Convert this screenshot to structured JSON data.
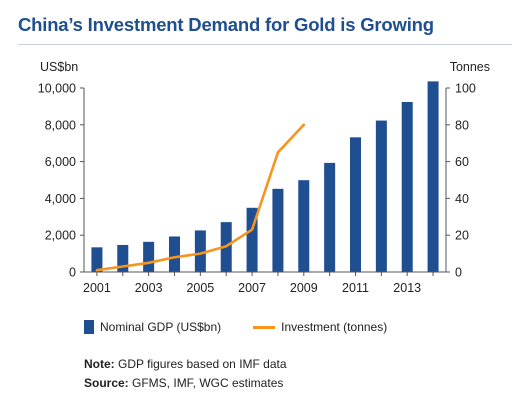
{
  "header": {
    "title": "China’s Investment Demand for Gold is Growing"
  },
  "chart_data": {
    "type": "bar",
    "title": "China’s Investment Demand for Gold is Growing",
    "x": [
      2001,
      2002,
      2003,
      2004,
      2005,
      2006,
      2007,
      2008,
      2009,
      2010,
      2011,
      2012,
      2013,
      2014
    ],
    "x_tick_labels": [
      "2001",
      "2003",
      "2005",
      "2007",
      "2009",
      "2011",
      "2013"
    ],
    "ylabel_left": "US$bn",
    "ylabel_right": "Tonnes",
    "ylim_left": [
      0,
      10000
    ],
    "ylim_right": [
      0,
      100
    ],
    "y_left_ticks": [
      "0",
      "2,000",
      "4,000",
      "6,000",
      "8,000",
      "10,000"
    ],
    "y_right_ticks": [
      "0",
      "20",
      "40",
      "60",
      "80",
      "100"
    ],
    "grid": false,
    "series": [
      {
        "name": "Nominal GDP (US$bn)",
        "type": "bar",
        "axis": "left",
        "color": "#1f4e91",
        "values": [
          1340,
          1470,
          1640,
          1930,
          2260,
          2710,
          3490,
          4520,
          4990,
          5930,
          7320,
          8230,
          9240,
          10360
        ]
      },
      {
        "name": "Investment (tonnes)",
        "type": "line",
        "axis": "right",
        "color": "#f7941d",
        "x": [
          2001,
          2002,
          2003,
          2004,
          2005,
          2006,
          2007,
          2008,
          2009
        ],
        "values": [
          1,
          3,
          5,
          8,
          10,
          14,
          23,
          65,
          80
        ]
      }
    ],
    "legend_position": "bottom"
  },
  "notes": {
    "note_label": "Note:",
    "note_text": " GDP figures based on IMF data",
    "source_label": "Source:",
    "source_text": " GFMS, IMF, WGC estimates"
  }
}
